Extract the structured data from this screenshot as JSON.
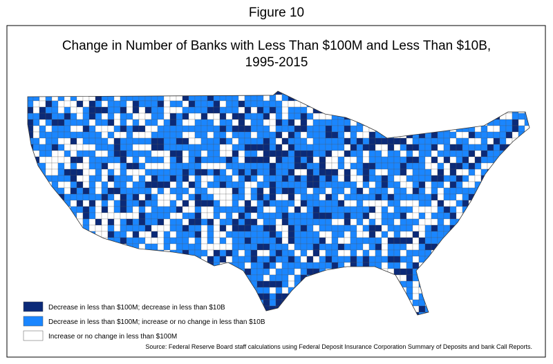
{
  "figure_label": "Figure 10",
  "title": [
    "Change in Number of Banks with Less Than $100M and Less Than $10B,",
    "1995-2015"
  ],
  "legend": [
    {
      "label": "Decrease in less than $100M; decrease in less than $10B",
      "color": "#0b2a78"
    },
    {
      "label": "Decrease in less than $100M; increase or no change in less than $10B",
      "color": "#1a86ff"
    },
    {
      "label": "Increase or no change in less than $100M",
      "color": "#ffffff"
    }
  ],
  "source": "Source:  Federal Reserve Board staff calculations using Federal Deposit Insurance Corporation Summary of Deposits and bank Call Reports."
}
